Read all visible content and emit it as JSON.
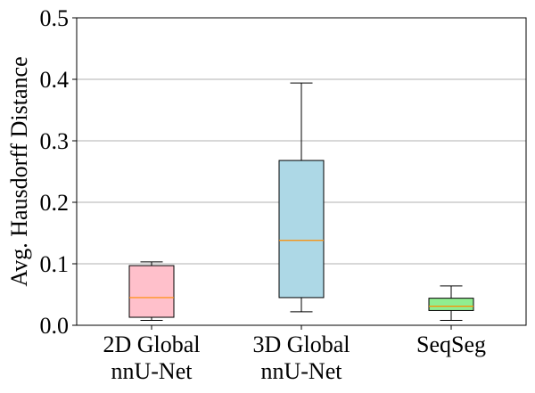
{
  "chart_data": {
    "type": "box",
    "title": "",
    "xlabel": "",
    "ylabel": "Avg. Hausdorff Distance",
    "ylim": [
      0.0,
      0.5
    ],
    "yticks": [
      0.0,
      0.1,
      0.2,
      0.3,
      0.4,
      0.5
    ],
    "ytick_labels": [
      "0.0",
      "0.1",
      "0.2",
      "0.3",
      "0.4",
      "0.5"
    ],
    "grid": "horizontal",
    "median_color": "#ff8c00",
    "categories": [
      {
        "label_lines": [
          "2D Global",
          "nnU-Net"
        ]
      },
      {
        "label_lines": [
          "3D Global",
          "nnU-Net"
        ]
      },
      {
        "label_lines": [
          "SeqSeg"
        ]
      }
    ],
    "boxes": [
      {
        "name": "2D Global nnU-Net",
        "whisker_low": 0.008,
        "q1": 0.013,
        "median": 0.045,
        "q3": 0.097,
        "whisker_high": 0.103,
        "color": "#ffc0cb"
      },
      {
        "name": "3D Global nnU-Net",
        "whisker_low": 0.022,
        "q1": 0.045,
        "median": 0.138,
        "q3": 0.268,
        "whisker_high": 0.394,
        "color": "#add8e6"
      },
      {
        "name": "SeqSeg",
        "whisker_low": 0.008,
        "q1": 0.024,
        "median": 0.031,
        "q3": 0.044,
        "whisker_high": 0.064,
        "color": "#90ee90"
      }
    ]
  }
}
